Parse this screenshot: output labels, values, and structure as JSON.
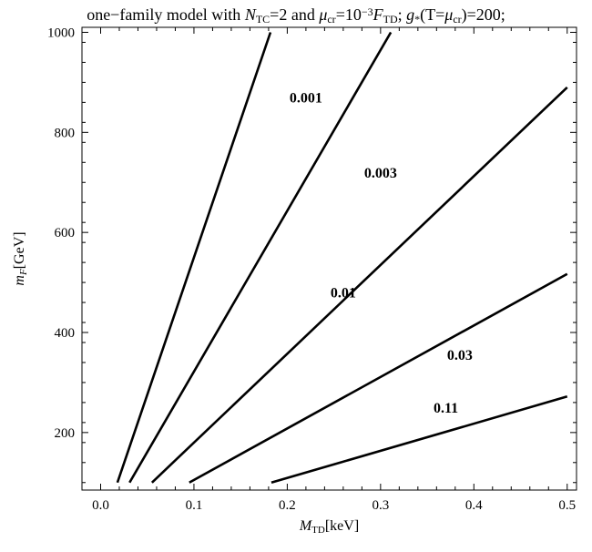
{
  "chart_data": {
    "type": "line",
    "title": {
      "parts": [
        {
          "t": "one−family model with "
        },
        {
          "t": "N",
          "italic": true
        },
        {
          "t": "TC",
          "sub": true
        },
        {
          "t": "=2 and "
        },
        {
          "t": "μ",
          "italic": true
        },
        {
          "t": "cr",
          "sub": true
        },
        {
          "t": "=10"
        },
        {
          "t": "−3",
          "sup": true
        },
        {
          "t": "F",
          "italic": true
        },
        {
          "t": "TD",
          "sub": true
        },
        {
          "t": "; "
        },
        {
          "t": "g",
          "italic": true
        },
        {
          "t": "*",
          "sub": true
        },
        {
          "t": "(T="
        },
        {
          "t": "μ",
          "italic": true
        },
        {
          "t": "cr",
          "sub": true
        },
        {
          "t": ")=200;"
        }
      ]
    },
    "xlabel": {
      "parts": [
        {
          "t": "M",
          "italic": true
        },
        {
          "t": "TD",
          "sub": true
        },
        {
          "t": "[keV]"
        }
      ]
    },
    "ylabel": {
      "parts": [
        {
          "t": "m",
          "italic": true
        },
        {
          "t": "F",
          "sub": true,
          "italic": true
        },
        {
          "t": "[GeV]"
        }
      ]
    },
    "xlim": [
      -0.02,
      0.51
    ],
    "ylim": [
      85,
      1010
    ],
    "x_ticks": [
      "0.0",
      "0.1",
      "0.2",
      "0.3",
      "0.4",
      "0.5"
    ],
    "y_ticks": [
      "200",
      "400",
      "600",
      "800",
      "1000"
    ],
    "x_tick_values": [
      0.0,
      0.1,
      0.2,
      0.3,
      0.4,
      0.5
    ],
    "y_tick_values": [
      200,
      400,
      600,
      800,
      1000
    ],
    "grid": false,
    "series": [
      {
        "name": "0.001",
        "x": [
          0.018,
          0.182
        ],
        "y": [
          100,
          1000
        ],
        "label_at": [
          0.22,
          860
        ]
      },
      {
        "name": "0.003",
        "x": [
          0.031,
          0.311
        ],
        "y": [
          100,
          1000
        ],
        "label_at": [
          0.3,
          710
        ]
      },
      {
        "name": "0.01",
        "x": [
          0.055,
          0.5
        ],
        "y": [
          100,
          890
        ],
        "label_at": [
          0.26,
          470
        ]
      },
      {
        "name": "0.03",
        "x": [
          0.095,
          0.5
        ],
        "y": [
          100,
          517
        ],
        "label_at": [
          0.385,
          345
        ]
      },
      {
        "name": "0.11",
        "x": [
          0.183,
          0.5
        ],
        "y": [
          100,
          272
        ],
        "label_at": [
          0.37,
          240
        ]
      }
    ]
  }
}
